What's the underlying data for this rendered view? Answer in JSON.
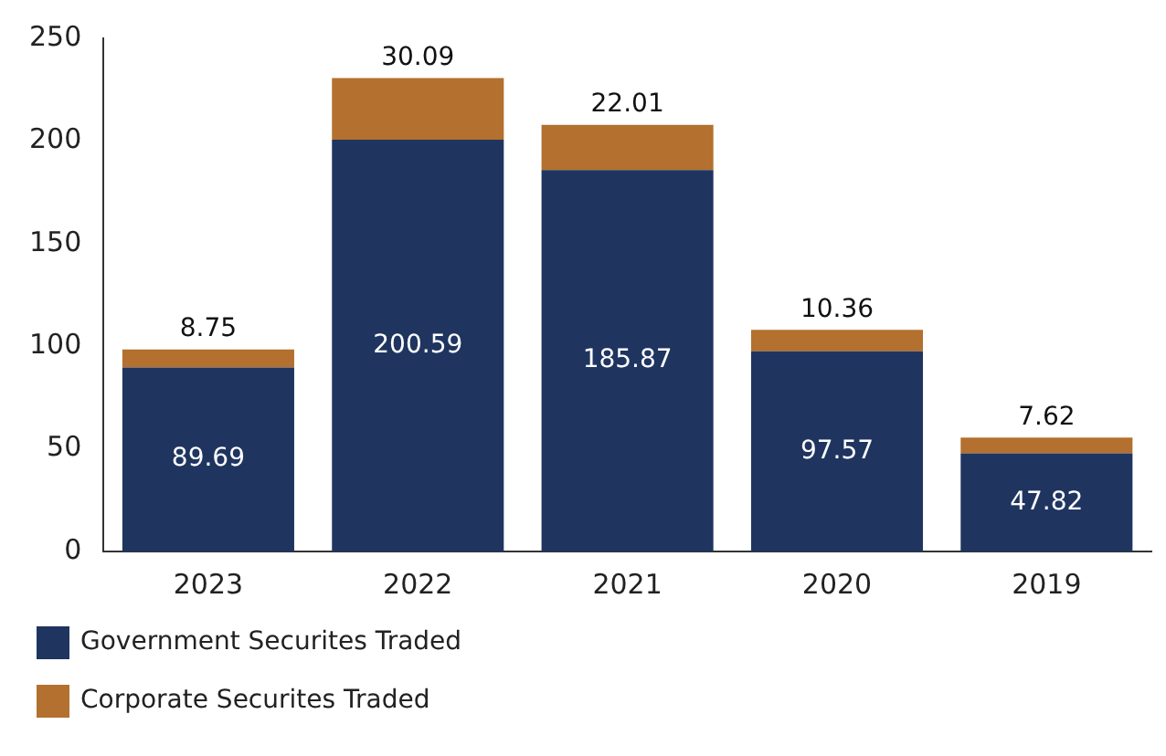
{
  "chart_data": {
    "type": "bar",
    "stacked": true,
    "categories": [
      "2023",
      "2022",
      "2021",
      "2020",
      "2019"
    ],
    "series": [
      {
        "name": "Government Securites Traded",
        "color": "#1f3560",
        "values": [
          89.69,
          200.59,
          185.87,
          97.57,
          47.82
        ]
      },
      {
        "name": "Corporate Securites Traded",
        "color": "#b3702e",
        "values": [
          8.75,
          30.09,
          22.01,
          10.36,
          7.62
        ]
      }
    ],
    "ylim": [
      0,
      250
    ],
    "yticks": [
      0,
      50,
      100,
      150,
      200,
      250
    ],
    "grid": false,
    "legend": "bottom",
    "data_labels": true
  }
}
